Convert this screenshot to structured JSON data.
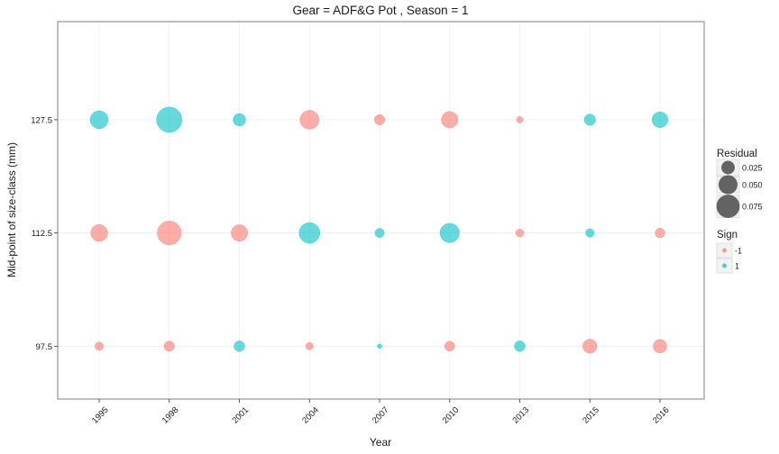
{
  "chart_data": {
    "type": "scatter",
    "title": "Gear = ADF&G Pot , Season = 1",
    "xlabel": "Year",
    "ylabel": "Mid-point of size-class (mm)",
    "categories": [
      "1995",
      "1998",
      "2001",
      "2004",
      "2007",
      "2010",
      "2013",
      "2015",
      "2016"
    ],
    "y_ticks": [
      "97.5",
      "112.5",
      "127.5"
    ],
    "grid": true,
    "legend_position": "right",
    "points": [
      {
        "x": "1995",
        "y": 127.5,
        "residual": 0.045,
        "sign": 1
      },
      {
        "x": "1998",
        "y": 127.5,
        "residual": 0.09,
        "sign": 1
      },
      {
        "x": "2001",
        "y": 127.5,
        "residual": 0.022,
        "sign": 1
      },
      {
        "x": "2004",
        "y": 127.5,
        "residual": 0.05,
        "sign": -1
      },
      {
        "x": "2007",
        "y": 127.5,
        "residual": 0.015,
        "sign": -1
      },
      {
        "x": "2010",
        "y": 127.5,
        "residual": 0.038,
        "sign": -1
      },
      {
        "x": "2013",
        "y": 127.5,
        "residual": 0.006,
        "sign": -1
      },
      {
        "x": "2015",
        "y": 127.5,
        "residual": 0.018,
        "sign": 1
      },
      {
        "x": "2016",
        "y": 127.5,
        "residual": 0.035,
        "sign": 1
      },
      {
        "x": "1995",
        "y": 112.5,
        "residual": 0.04,
        "sign": -1
      },
      {
        "x": "1998",
        "y": 112.5,
        "residual": 0.08,
        "sign": -1
      },
      {
        "x": "2001",
        "y": 112.5,
        "residual": 0.038,
        "sign": -1
      },
      {
        "x": "2004",
        "y": 112.5,
        "residual": 0.06,
        "sign": 1
      },
      {
        "x": "2007",
        "y": 112.5,
        "residual": 0.012,
        "sign": 1
      },
      {
        "x": "2010",
        "y": 112.5,
        "residual": 0.052,
        "sign": 1
      },
      {
        "x": "2013",
        "y": 112.5,
        "residual": 0.009,
        "sign": -1
      },
      {
        "x": "2015",
        "y": 112.5,
        "residual": 0.01,
        "sign": 1
      },
      {
        "x": "2016",
        "y": 112.5,
        "residual": 0.013,
        "sign": -1
      },
      {
        "x": "1995",
        "y": 97.5,
        "residual": 0.01,
        "sign": -1
      },
      {
        "x": "1998",
        "y": 97.5,
        "residual": 0.015,
        "sign": -1
      },
      {
        "x": "2001",
        "y": 97.5,
        "residual": 0.016,
        "sign": 1
      },
      {
        "x": "2004",
        "y": 97.5,
        "residual": 0.008,
        "sign": -1
      },
      {
        "x": "2007",
        "y": 97.5,
        "residual": 0.003,
        "sign": 1
      },
      {
        "x": "2010",
        "y": 97.5,
        "residual": 0.014,
        "sign": -1
      },
      {
        "x": "2013",
        "y": 97.5,
        "residual": 0.016,
        "sign": 1
      },
      {
        "x": "2015",
        "y": 97.5,
        "residual": 0.028,
        "sign": -1
      },
      {
        "x": "2016",
        "y": 97.5,
        "residual": 0.026,
        "sign": -1
      }
    ],
    "ylim": [
      90.5,
      140.5
    ],
    "legends": {
      "size": {
        "title": "Residual",
        "breaks": [
          0.025,
          0.05,
          0.075
        ],
        "labels": [
          "0.025",
          "0.050",
          "0.075"
        ]
      },
      "color": {
        "title": "Sign",
        "entries": [
          {
            "label": "-1",
            "value": -1
          },
          {
            "label": "1",
            "value": 1
          }
        ]
      }
    },
    "colors": {
      "negative": "#F8766D",
      "positive": "#00BFC4",
      "legend_size_fill": "#333333"
    }
  }
}
